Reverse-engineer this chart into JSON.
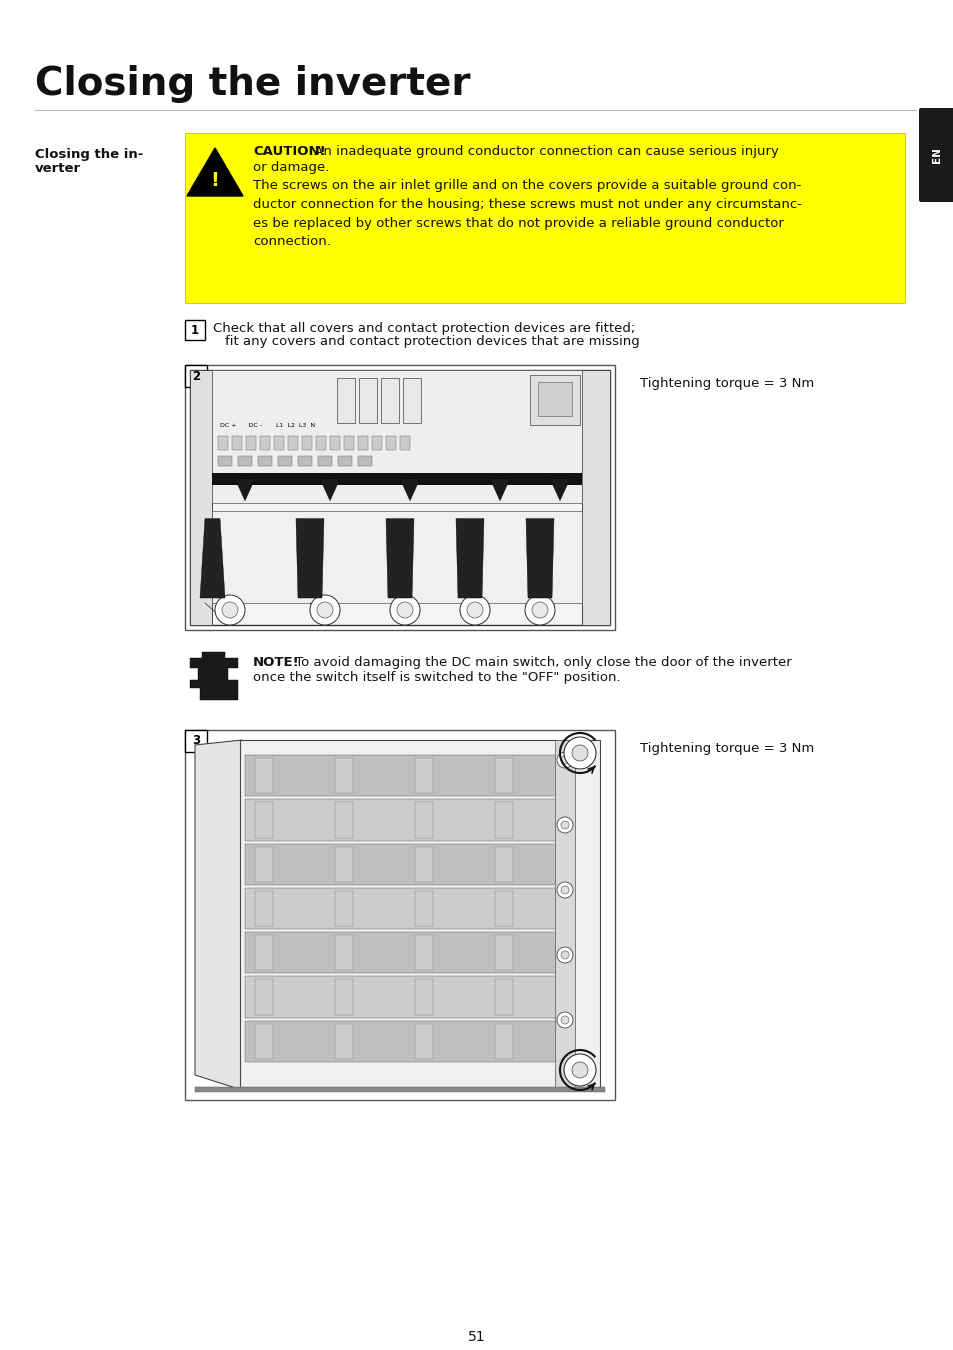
{
  "title": "Closing the inverter",
  "page_number": "51",
  "tab_label": "EN",
  "section_label_line1": "Closing the in-",
  "section_label_line2": "verter",
  "caution_bold": "CAUTION!",
  "caution_line1_rest": " An inadequate ground conductor connection can cause serious injury",
  "caution_body": "or damage.\nThe screws on the air inlet grille and on the covers provide a suitable ground con-\nductor connection for the housing; these screws must not under any circumstanc-\nes be replaced by other screws that do not provide a reliable ground conductor\nconnection.",
  "step1_line1": "Check that all covers and contact protection devices are fitted;",
  "step1_line2": "fit any covers and contact protection devices that are missing",
  "step2_label": "Tightening torque = 3 Nm",
  "note_bold": "NOTE!",
  "note_line1_rest": " To avoid damaging the DC main switch, only close the door of the inverter",
  "note_line2": "once the switch itself is switched to the \"OFF\" position.",
  "step3_label": "Tightening torque = 3 Nm",
  "bg_color": "#ffffff",
  "caution_bg": "#ffff00",
  "title_fontsize": 28,
  "body_fontsize": 9.5,
  "bold_fontsize": 9.5,
  "hr_color": "#bbbbbb"
}
